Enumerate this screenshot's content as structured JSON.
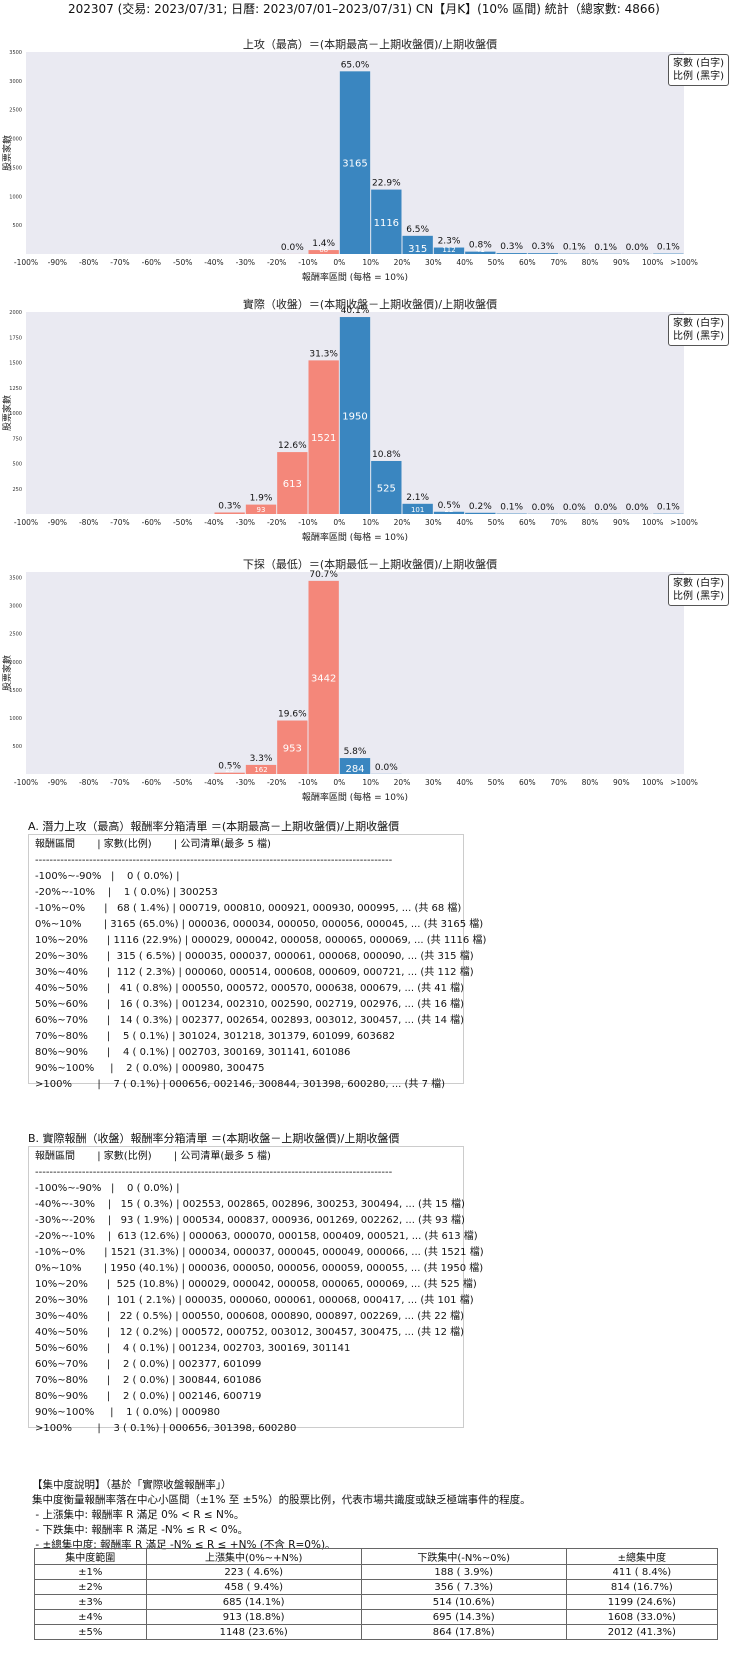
{
  "header": {
    "title": "202307 (交易: 2023/07/31; 日曆: 2023/07/01–2023/07/31) CN【月K】(10% 區間) 統計（總家數: 4866)"
  },
  "legend": {
    "line1": "家數 (白字)",
    "line2": "比例 (黑字)"
  },
  "colors": {
    "up": "#3a86c0",
    "down": "#f4877a",
    "bg": "#eaeaf2"
  },
  "chart_data": [
    {
      "type": "bar",
      "title": "上攻（最高）＝(本期最高－上期收盤價)/上期收盤價",
      "xlabel": "報酬率區間 (每格 = 10%)",
      "ylabel": "股票家數",
      "categories": [
        "-100%",
        "-90%",
        "-80%",
        "-70%",
        "-60%",
        "-50%",
        "-40%",
        "-30%",
        "-20%",
        "-10%",
        "0%",
        "10%",
        "20%",
        "30%",
        "40%",
        "50%",
        "60%",
        "70%",
        "80%",
        "90%",
        "100%",
        ">100%"
      ],
      "ylim": [
        0,
        3500
      ],
      "yticks": [
        500,
        1000,
        1500,
        2000,
        2500,
        3000,
        3500
      ],
      "bars": [
        {
          "bin": "-100%~-90%",
          "count": 0,
          "pct": "",
          "color": "down"
        },
        {
          "bin": "-20%~-10%",
          "count": 1,
          "pct": "0.0%",
          "color": "down"
        },
        {
          "bin": "-10%~0%",
          "count": 68,
          "pct": "1.4%",
          "color": "down"
        },
        {
          "bin": "0%~10%",
          "count": 3165,
          "pct": "65.0%",
          "color": "up"
        },
        {
          "bin": "10%~20%",
          "count": 1116,
          "pct": "22.9%",
          "color": "up"
        },
        {
          "bin": "20%~30%",
          "count": 315,
          "pct": "6.5%",
          "color": "up"
        },
        {
          "bin": "30%~40%",
          "count": 112,
          "pct": "2.3%",
          "color": "up"
        },
        {
          "bin": "40%~50%",
          "count": 41,
          "pct": "0.8%",
          "color": "up"
        },
        {
          "bin": "50%~60%",
          "count": 16,
          "pct": "0.3%",
          "color": "up"
        },
        {
          "bin": "60%~70%",
          "count": 14,
          "pct": "0.3%",
          "color": "up"
        },
        {
          "bin": "70%~80%",
          "count": 5,
          "pct": "0.1%",
          "color": "up"
        },
        {
          "bin": "80%~90%",
          "count": 4,
          "pct": "0.1%",
          "color": "up"
        },
        {
          "bin": "90%~100%",
          "count": 2,
          "pct": "0.0%",
          "color": "up"
        },
        {
          "bin": ">100%",
          "count": 7,
          "pct": "0.1%",
          "color": "up"
        }
      ]
    },
    {
      "type": "bar",
      "title": "實際（收盤）＝(本期收盤－上期收盤價)/上期收盤價",
      "xlabel": "報酬率區間 (每格 = 10%)",
      "ylabel": "股票家數",
      "categories": [
        "-100%",
        "-90%",
        "-80%",
        "-70%",
        "-60%",
        "-50%",
        "-40%",
        "-30%",
        "-20%",
        "-10%",
        "0%",
        "10%",
        "20%",
        "30%",
        "40%",
        "50%",
        "60%",
        "70%",
        "80%",
        "90%",
        "100%",
        ">100%"
      ],
      "ylim": [
        0,
        2000
      ],
      "yticks": [
        250,
        500,
        750,
        1000,
        1250,
        1500,
        1750,
        2000
      ],
      "bars": [
        {
          "bin": "-40%~-30%",
          "count": 15,
          "pct": "0.3%",
          "color": "down"
        },
        {
          "bin": "-30%~-20%",
          "count": 93,
          "pct": "1.9%",
          "color": "down"
        },
        {
          "bin": "-20%~-10%",
          "count": 613,
          "pct": "12.6%",
          "color": "down"
        },
        {
          "bin": "-10%~0%",
          "count": 1521,
          "pct": "31.3%",
          "color": "down"
        },
        {
          "bin": "0%~10%",
          "count": 1950,
          "pct": "40.1%",
          "color": "up"
        },
        {
          "bin": "10%~20%",
          "count": 525,
          "pct": "10.8%",
          "color": "up"
        },
        {
          "bin": "20%~30%",
          "count": 101,
          "pct": "2.1%",
          "color": "up"
        },
        {
          "bin": "30%~40%",
          "count": 22,
          "pct": "0.5%",
          "color": "up"
        },
        {
          "bin": "40%~50%",
          "count": 12,
          "pct": "0.2%",
          "color": "up"
        },
        {
          "bin": "50%~60%",
          "count": 4,
          "pct": "0.1%",
          "color": "up"
        },
        {
          "bin": "60%~70%",
          "count": 2,
          "pct": "0.0%",
          "color": "up"
        },
        {
          "bin": "70%~80%",
          "count": 2,
          "pct": "0.0%",
          "color": "up"
        },
        {
          "bin": "80%~90%",
          "count": 2,
          "pct": "0.0%",
          "color": "up"
        },
        {
          "bin": "90%~100%",
          "count": 1,
          "pct": "0.0%",
          "color": "up"
        },
        {
          "bin": ">100%",
          "count": 3,
          "pct": "0.1%",
          "color": "up"
        }
      ]
    },
    {
      "type": "bar",
      "title": "下探（最低）＝(本期最低－上期收盤價)/上期收盤價",
      "xlabel": "報酬率區間 (每格 = 10%)",
      "ylabel": "股票家數",
      "categories": [
        "-100%",
        "-90%",
        "-80%",
        "-70%",
        "-60%",
        "-50%",
        "-40%",
        "-30%",
        "-20%",
        "-10%",
        "0%",
        "10%",
        "20%",
        "30%",
        "40%",
        "50%",
        "60%",
        "70%",
        "80%",
        "90%",
        "100%",
        ">100%"
      ],
      "ylim": [
        0,
        3600
      ],
      "yticks": [
        500,
        1000,
        1500,
        2000,
        2500,
        3000,
        3500
      ],
      "bars": [
        {
          "bin": "-40%~-30%",
          "count": 23,
          "pct": "0.5%",
          "color": "down"
        },
        {
          "bin": "-30%~-20%",
          "count": 162,
          "pct": "3.3%",
          "color": "down"
        },
        {
          "bin": "-20%~-10%",
          "count": 953,
          "pct": "19.6%",
          "color": "down"
        },
        {
          "bin": "-10%~0%",
          "count": 3442,
          "pct": "70.7%",
          "color": "down"
        },
        {
          "bin": "0%~10%",
          "count": 284,
          "pct": "5.8%",
          "color": "up"
        },
        {
          "bin": "10%~20%",
          "count": 2,
          "pct": "0.0%",
          "color": "up"
        }
      ]
    }
  ],
  "list_a": {
    "title": "A. 潛力上攻（最高）報酬率分箱清單 ＝(本期最高－上期收盤價)/上期收盤價",
    "header": "報酬區間       | 家數(比例)       | 公司清單(最多 5 檔)",
    "divider": "---------------------------------------------------------------------------------------------------",
    "rows": [
      "-100%~-90%   |    0 ( 0.0%) |",
      "-20%~-10%    |    1 ( 0.0%) | 300253",
      "-10%~0%      |   68 ( 1.4%) | 000719, 000810, 000921, 000930, 000995, ... (共 68 檔)",
      "0%~10%       | 3165 (65.0%) | 000036, 000034, 000050, 000056, 000045, ... (共 3165 檔)",
      "10%~20%      | 1116 (22.9%) | 000029, 000042, 000058, 000065, 000069, ... (共 1116 檔)",
      "20%~30%      |  315 ( 6.5%) | 000035, 000037, 000061, 000068, 000090, ... (共 315 檔)",
      "30%~40%      |  112 ( 2.3%) | 000060, 000514, 000608, 000609, 000721, ... (共 112 檔)",
      "40%~50%      |   41 ( 0.8%) | 000550, 000572, 000570, 000638, 000679, ... (共 41 檔)",
      "50%~60%      |   16 ( 0.3%) | 001234, 002310, 002590, 002719, 002976, ... (共 16 檔)",
      "60%~70%      |   14 ( 0.3%) | 002377, 002654, 002893, 003012, 300457, ... (共 14 檔)",
      "70%~80%      |    5 ( 0.1%) | 301024, 301218, 301379, 601099, 603682",
      "80%~90%      |    4 ( 0.1%) | 002703, 300169, 301141, 601086",
      "90%~100%     |    2 ( 0.0%) | 000980, 300475",
      ">100%        |    7 ( 0.1%) | 000656, 002146, 300844, 301398, 600280, ... (共 7 檔)"
    ]
  },
  "list_b": {
    "title": "B. 實際報酬（收盤）報酬率分箱清單 ＝(本期收盤－上期收盤價)/上期收盤價",
    "header": "報酬區間       | 家數(比例)       | 公司清單(最多 5 檔)",
    "divider": "---------------------------------------------------------------------------------------------------",
    "rows": [
      "-100%~-90%   |    0 ( 0.0%) |",
      "-40%~-30%    |   15 ( 0.3%) | 002553, 002865, 002896, 300253, 300494, ... (共 15 檔)",
      "-30%~-20%    |   93 ( 1.9%) | 000534, 000837, 000936, 001269, 002262, ... (共 93 檔)",
      "-20%~-10%    |  613 (12.6%) | 000063, 000070, 000158, 000409, 000521, ... (共 613 檔)",
      "-10%~0%      | 1521 (31.3%) | 000034, 000037, 000045, 000049, 000066, ... (共 1521 檔)",
      "0%~10%       | 1950 (40.1%) | 000036, 000050, 000056, 000059, 000055, ... (共 1950 檔)",
      "10%~20%      |  525 (10.8%) | 000029, 000042, 000058, 000065, 000069, ... (共 525 檔)",
      "20%~30%      |  101 ( 2.1%) | 000035, 000060, 000061, 000068, 000417, ... (共 101 檔)",
      "30%~40%      |   22 ( 0.5%) | 000550, 000608, 000890, 000897, 002269, ... (共 22 檔)",
      "40%~50%      |   12 ( 0.2%) | 000572, 000752, 003012, 300457, 300475, ... (共 12 檔)",
      "50%~60%      |    4 ( 0.1%) | 001234, 002703, 300169, 301141",
      "60%~70%      |    2 ( 0.0%) | 002377, 601099",
      "70%~80%      |    2 ( 0.0%) | 300844, 601086",
      "80%~90%      |    2 ( 0.0%) | 002146, 600719",
      "90%~100%     |    1 ( 0.0%) | 000980",
      ">100%        |    3 ( 0.1%) | 000656, 301398, 600280"
    ]
  },
  "concentration": {
    "heading": "【集中度說明】（基於「實際收盤報酬率」）",
    "desc": "集中度衡量報酬率落在中心小區間（±1% 至 ±5%）的股票比例，代表市場共識度或缺乏極端事件的程度。",
    "bullets": [
      " - 上漲集中: 報酬率 R 滿足 0% < R ≤ N%。",
      " - 下跌集中: 報酬率 R 滿足 -N% ≤ R < 0%。",
      " - ±總集中度: 報酬率 R 滿足 -N% ≤ R ≤ +N% (不含 R=0%)。"
    ],
    "columns": [
      "集中度範圍",
      "上漲集中(0%~+N%)",
      "下跌集中(-N%~0%)",
      "±總集中度"
    ],
    "rows": [
      [
        "±1%",
        "223 ( 4.6%)",
        "188 ( 3.9%)",
        "411 ( 8.4%)"
      ],
      [
        "±2%",
        "458 ( 9.4%)",
        "356 ( 7.3%)",
        "814 (16.7%)"
      ],
      [
        "±3%",
        "685 (14.1%)",
        "514 (10.6%)",
        "1199 (24.6%)"
      ],
      [
        "±4%",
        "913 (18.8%)",
        "695 (14.3%)",
        "1608 (33.0%)"
      ],
      [
        "±5%",
        "1148 (23.6%)",
        "864 (17.8%)",
        "2012 (41.3%)"
      ]
    ]
  }
}
